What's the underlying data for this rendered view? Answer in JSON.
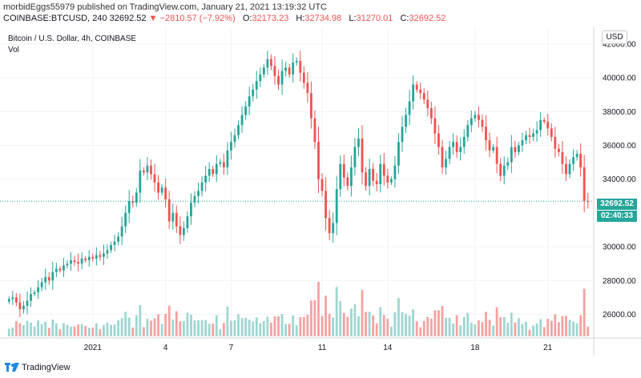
{
  "header": {
    "publisher_line": "morbidEggs55979 published on TradingView.com, January 21, 2021 13:19:32 UTC",
    "symbol": "COINBASE:BTCUSD, 240",
    "last": "32692.52",
    "change": "▼ −2810.57 (−7.92%)",
    "o_label": "O:",
    "o_value": "32173.23",
    "h_label": "H:",
    "h_value": "32734.98",
    "l_label": "L:",
    "l_value": "31270.01",
    "c_label": "C:",
    "c_value": "32692.52"
  },
  "legend": {
    "title": "Bitcoin / U.S. Dollar, 4h, COINBASE",
    "vol": "Vol"
  },
  "currency_button": "USD",
  "price_tag": "32692.52",
  "countdown_tag": "02:40:33",
  "footer": {
    "brand": "TradingView"
  },
  "colors": {
    "up": "#26a69a",
    "down": "#ef5350",
    "up_vol": "#9fd6d1",
    "down_vol": "#f5a3a1"
  },
  "chart_data": {
    "type": "candlestick",
    "y_ticks": [
      "42000.00",
      "40000.00",
      "38000.00",
      "36000.00",
      "34000.00",
      "30000.00",
      "28000.00",
      "26000.00"
    ],
    "ylim": [
      24600,
      42800
    ],
    "x_ticks": [
      {
        "label": "2021",
        "index": 23
      },
      {
        "label": "4",
        "index": 43
      },
      {
        "label": "7",
        "index": 61
      },
      {
        "label": "11",
        "index": 86
      },
      {
        "label": "14",
        "index": 104
      },
      {
        "label": "18",
        "index": 128
      },
      {
        "label": "21",
        "index": 148
      }
    ],
    "last_price": 32692.52,
    "closes": [
      26900,
      27000,
      26700,
      26300,
      26500,
      26800,
      27200,
      27300,
      27600,
      27900,
      28200,
      28000,
      28500,
      28700,
      28600,
      28900,
      29000,
      29200,
      29100,
      29000,
      29300,
      29200,
      29400,
      29300,
      29500,
      29400,
      29600,
      29800,
      30100,
      30300,
      30600,
      31200,
      32000,
      32700,
      32600,
      33200,
      34500,
      34400,
      34800,
      34300,
      33800,
      33200,
      33500,
      32800,
      31500,
      32000,
      31200,
      30700,
      31100,
      31800,
      32600,
      33000,
      33300,
      33800,
      34200,
      34600,
      34300,
      34900,
      35000,
      34700,
      35700,
      36200,
      36600,
      37200,
      37800,
      38300,
      38900,
      39300,
      39800,
      40200,
      40600,
      41100,
      40700,
      40100,
      39600,
      40400,
      40600,
      40200,
      40900,
      41000,
      40300,
      39700,
      39100,
      37600,
      36200,
      34000,
      33300,
      31700,
      30800,
      31400,
      33400,
      34900,
      34100,
      33600,
      34700,
      35900,
      36400,
      34400,
      33600,
      34600,
      33900,
      33700,
      34900,
      34200,
      33800,
      34000,
      34800,
      36200,
      37100,
      37800,
      38600,
      39600,
      39300,
      39100,
      38700,
      38200,
      37600,
      36700,
      35900,
      34700,
      35200,
      35900,
      36200,
      35600,
      35900,
      36500,
      37200,
      37600,
      37800,
      37500,
      37100,
      36300,
      35700,
      35900,
      34900,
      34200,
      34800,
      35000,
      35900,
      35600,
      36000,
      36300,
      36600,
      36500,
      36700,
      36900,
      37500,
      37400,
      37000,
      36500,
      35800,
      35600,
      34900,
      34300,
      34900,
      35300,
      35500,
      34700,
      32700,
      32692
    ]
  }
}
